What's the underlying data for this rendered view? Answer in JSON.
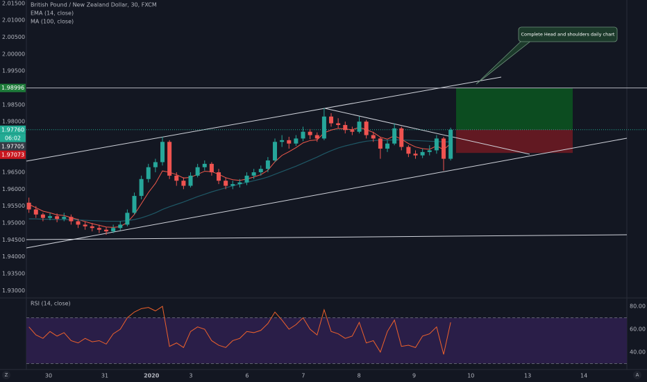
{
  "chart_data": [
    {
      "type": "candlestick",
      "title": "British Pound / New Zealand Dollar, 30, FXCM",
      "x": [
        -0.35,
        -0.225,
        -0.1,
        0.025,
        0.15,
        0.275,
        0.4,
        0.525,
        0.65,
        0.775,
        0.9,
        1.025,
        1.15,
        1.275,
        1.4,
        1.525,
        1.65,
        1.775,
        1.9,
        2.025,
        2.15,
        2.275,
        2.4,
        2.525,
        2.65,
        2.775,
        2.9,
        3.025,
        3.15,
        3.275,
        3.4,
        3.525,
        3.65,
        3.775,
        3.9,
        4.025,
        4.15,
        4.275,
        4.4,
        4.525,
        4.65,
        4.775,
        4.9,
        5.025,
        5.15,
        5.275,
        5.4,
        5.525,
        5.65,
        5.775,
        5.9,
        6.025,
        6.15,
        6.275,
        6.4,
        6.525,
        6.65,
        6.775,
        6.9,
        7.025,
        7.15
      ],
      "ohlc": [
        [
          1.956,
          1.9575,
          1.953,
          1.954
        ],
        [
          1.954,
          1.955,
          1.9515,
          1.9525
        ],
        [
          1.9525,
          1.953,
          1.9505,
          1.9515
        ],
        [
          1.9515,
          1.953,
          1.9508,
          1.952
        ],
        [
          1.952,
          1.9528,
          1.9502,
          1.9512
        ],
        [
          1.9512,
          1.953,
          1.9505,
          1.9518
        ],
        [
          1.9518,
          1.9525,
          1.9495,
          1.9505
        ],
        [
          1.9505,
          1.9512,
          1.9485,
          1.9495
        ],
        [
          1.9495,
          1.9505,
          1.948,
          1.949
        ],
        [
          1.949,
          1.95,
          1.9475,
          1.9485
        ],
        [
          1.9485,
          1.9495,
          1.947,
          1.948
        ],
        [
          1.948,
          1.9488,
          1.9465,
          1.9475
        ],
        [
          1.9475,
          1.9495,
          1.947,
          1.9485
        ],
        [
          1.9485,
          1.9505,
          1.9478,
          1.9495
        ],
        [
          1.9495,
          1.954,
          1.949,
          1.953
        ],
        [
          1.953,
          1.959,
          1.9525,
          1.958
        ],
        [
          1.958,
          1.964,
          1.957,
          1.963
        ],
        [
          1.963,
          1.9675,
          1.962,
          1.9665
        ],
        [
          1.9665,
          1.969,
          1.965,
          1.968
        ],
        [
          1.968,
          1.9755,
          1.967,
          1.974
        ],
        [
          1.974,
          1.9745,
          1.963,
          1.964
        ],
        [
          1.964,
          1.965,
          1.961,
          1.9625
        ],
        [
          1.9625,
          1.9635,
          1.96,
          1.961
        ],
        [
          1.961,
          1.965,
          1.9605,
          1.964
        ],
        [
          1.964,
          1.9675,
          1.9635,
          1.9665
        ],
        [
          1.9665,
          1.9685,
          1.9655,
          1.9675
        ],
        [
          1.9675,
          1.968,
          1.964,
          1.965
        ],
        [
          1.965,
          1.966,
          1.9615,
          1.9625
        ],
        [
          1.9625,
          1.9635,
          1.96,
          1.961
        ],
        [
          1.961,
          1.9625,
          1.96,
          1.9615
        ],
        [
          1.9615,
          1.963,
          1.9605,
          1.962
        ],
        [
          1.962,
          1.965,
          1.9612,
          1.964
        ],
        [
          1.964,
          1.966,
          1.963,
          1.965
        ],
        [
          1.965,
          1.967,
          1.964,
          1.966
        ],
        [
          1.966,
          1.9695,
          1.965,
          1.9685
        ],
        [
          1.9685,
          1.975,
          1.968,
          1.974
        ],
        [
          1.974,
          1.976,
          1.9725,
          1.9745
        ],
        [
          1.9745,
          1.9755,
          1.972,
          1.9735
        ],
        [
          1.9735,
          1.976,
          1.9728,
          1.975
        ],
        [
          1.975,
          1.9785,
          1.9742,
          1.977
        ],
        [
          1.977,
          1.9778,
          1.9748,
          1.976
        ],
        [
          1.976,
          1.9768,
          1.974,
          1.975
        ],
        [
          1.975,
          1.984,
          1.9745,
          1.9815
        ],
        [
          1.9815,
          1.9825,
          1.9785,
          1.9795
        ],
        [
          1.9795,
          1.981,
          1.978,
          1.979
        ],
        [
          1.979,
          1.98,
          1.9765,
          1.9775
        ],
        [
          1.9775,
          1.9785,
          1.976,
          1.977
        ],
        [
          1.977,
          1.9815,
          1.9765,
          1.98
        ],
        [
          1.98,
          1.9805,
          1.975,
          1.976
        ],
        [
          1.976,
          1.977,
          1.974,
          1.975
        ],
        [
          1.975,
          1.9755,
          1.969,
          1.972
        ],
        [
          1.972,
          1.9745,
          1.971,
          1.9735
        ],
        [
          1.9735,
          1.9795,
          1.973,
          1.978
        ],
        [
          1.978,
          1.9785,
          1.9715,
          1.9725
        ],
        [
          1.9725,
          1.973,
          1.9695,
          1.9705
        ],
        [
          1.9705,
          1.9715,
          1.969,
          1.97
        ],
        [
          1.97,
          1.972,
          1.9692,
          1.971
        ],
        [
          1.971,
          1.973,
          1.97,
          1.9715
        ],
        [
          1.9715,
          1.976,
          1.9705,
          1.975
        ],
        [
          1.975,
          1.9755,
          1.9655,
          1.969
        ],
        [
          1.969,
          1.9782,
          1.9685,
          1.9776
        ]
      ],
      "up_color": "#26a69a",
      "down_color": "#ef5350",
      "series": [
        {
          "name": "EMA (14, close)",
          "color": "#f2594b",
          "values": [
            1.9555,
            1.9545,
            1.9535,
            1.953,
            1.9524,
            1.9522,
            1.9516,
            1.951,
            1.9504,
            1.9498,
            1.9493,
            1.9488,
            1.9487,
            1.9489,
            1.9502,
            1.9525,
            1.9557,
            1.959,
            1.9617,
            1.9654,
            1.965,
            1.9643,
            1.9633,
            1.9635,
            1.9644,
            1.9653,
            1.9652,
            1.9644,
            1.9634,
            1.9628,
            1.9626,
            1.963,
            1.9636,
            1.9643,
            1.9656,
            1.9681,
            1.97,
            1.9711,
            1.9723,
            1.9737,
            1.9744,
            1.9746,
            1.9767,
            1.9775,
            1.978,
            1.9778,
            1.9776,
            1.9783,
            1.9776,
            1.9768,
            1.9754,
            1.9748,
            1.9758,
            1.9748,
            1.9735,
            1.9725,
            1.972,
            1.9718,
            1.9728,
            1.9717,
            1.9735
          ]
        },
        {
          "name": "MA (100, close)",
          "color": "#1f5866",
          "values": [
            1.9512,
            1.9512,
            1.9511,
            1.9511,
            1.951,
            1.951,
            1.951,
            1.9509,
            1.9508,
            1.9507,
            1.9506,
            1.9505,
            1.9505,
            1.9505,
            1.9507,
            1.951,
            1.9515,
            1.9522,
            1.953,
            1.954,
            1.9548,
            1.9555,
            1.9562,
            1.957,
            1.9578,
            1.9585,
            1.9592,
            1.9598,
            1.9604,
            1.961,
            1.9615,
            1.962,
            1.9625,
            1.963,
            1.9636,
            1.9644,
            1.9652,
            1.966,
            1.9668,
            1.9677,
            1.9686,
            1.9695,
            1.9705,
            1.9714,
            1.9722,
            1.9728,
            1.9733,
            1.9738,
            1.9742,
            1.9744,
            1.9745,
            1.9745,
            1.9746,
            1.9746,
            1.9745,
            1.9744,
            1.9743,
            1.9742,
            1.9741,
            1.974,
            1.974
          ]
        }
      ],
      "xlim": [
        -0.395,
        10.284
      ],
      "xticks": [
        {
          "value": 0,
          "label": "30"
        },
        {
          "value": 1,
          "label": "31"
        },
        {
          "value": 1.83,
          "label": "2020"
        },
        {
          "value": 2.53,
          "label": "3"
        },
        {
          "value": 3.53,
          "label": "6"
        },
        {
          "value": 4.53,
          "label": "7"
        },
        {
          "value": 5.52,
          "label": "8"
        },
        {
          "value": 6.5,
          "label": "9"
        },
        {
          "value": 7.51,
          "label": "10"
        },
        {
          "value": 8.52,
          "label": "13"
        },
        {
          "value": 9.52,
          "label": "14"
        }
      ],
      "ylim": [
        1.928,
        2.016
      ],
      "yticks": [
        {
          "value": 2.015,
          "label": "2.01500"
        },
        {
          "value": 2.01,
          "label": "2.01000"
        },
        {
          "value": 2.005,
          "label": "2.00500"
        },
        {
          "value": 2.0,
          "label": "2.00000"
        },
        {
          "value": 1.995,
          "label": "1.99500"
        },
        {
          "value": 1.99,
          "label": "1.99000"
        },
        {
          "value": 1.985,
          "label": "1.98500"
        },
        {
          "value": 1.98,
          "label": "1.98000"
        },
        {
          "value": 1.975,
          "label": "1.97500"
        },
        {
          "value": 1.97,
          "label": "1.97000"
        },
        {
          "value": 1.965,
          "label": "1.96500"
        },
        {
          "value": 1.96,
          "label": "1.96000"
        },
        {
          "value": 1.955,
          "label": "1.95500"
        },
        {
          "value": 1.95,
          "label": "1.95000"
        },
        {
          "value": 1.945,
          "label": "1.94500"
        },
        {
          "value": 1.94,
          "label": "1.94000"
        },
        {
          "value": 1.935,
          "label": "1.93500"
        },
        {
          "value": 1.93,
          "label": "1.93000"
        }
      ],
      "price_labels": [
        {
          "value": 1.98996,
          "color": "#1e7b3a",
          "line": "solid"
        },
        {
          "value": 1.9776,
          "label": "1.97760",
          "color": "#22ab94",
          "line": "dotted",
          "countdown": "06:02"
        },
        {
          "value": 1.97705,
          "color": "#363a45"
        },
        {
          "value": 1.97073,
          "color": "#c8161e"
        }
      ],
      "annotation": "Complete Head and shoulders daily chart"
    },
    {
      "type": "line",
      "title": "RSI (14, close)",
      "x": [
        -0.35,
        -0.225,
        -0.1,
        0.025,
        0.15,
        0.275,
        0.4,
        0.525,
        0.65,
        0.775,
        0.9,
        1.025,
        1.15,
        1.275,
        1.4,
        1.525,
        1.65,
        1.775,
        1.9,
        2.025,
        2.15,
        2.275,
        2.4,
        2.525,
        2.65,
        2.775,
        2.9,
        3.025,
        3.15,
        3.275,
        3.4,
        3.525,
        3.65,
        3.775,
        3.9,
        4.025,
        4.15,
        4.275,
        4.4,
        4.525,
        4.65,
        4.775,
        4.9,
        5.025,
        5.15,
        5.275,
        5.4,
        5.525,
        5.65,
        5.775,
        5.9,
        6.025,
        6.15,
        6.275,
        6.4,
        6.525,
        6.65,
        6.775,
        6.9,
        7.025,
        7.15
      ],
      "series": [
        {
          "color": "#f0622b",
          "values": [
            62,
            55,
            52,
            58,
            54,
            57,
            50,
            48,
            52,
            49,
            50,
            47,
            56,
            60,
            70,
            75,
            78,
            79,
            76,
            80,
            45,
            48,
            44,
            58,
            62,
            60,
            50,
            46,
            44,
            50,
            52,
            58,
            57,
            59,
            65,
            75,
            68,
            60,
            64,
            70,
            60,
            55,
            77,
            58,
            56,
            52,
            54,
            66,
            48,
            50,
            40,
            58,
            68,
            45,
            46,
            44,
            54,
            56,
            62,
            38,
            66
          ]
        }
      ],
      "xlim": [
        -0.395,
        10.284
      ],
      "ylim": [
        26,
        86.7
      ],
      "yticks": [
        {
          "value": 80,
          "label": "80.00"
        },
        {
          "value": 60,
          "label": "60.00"
        },
        {
          "value": 40,
          "label": "40.00"
        }
      ],
      "bands": [
        30,
        70
      ],
      "band_color": "#2a1e48"
    }
  ],
  "ui": {
    "left_button": "Z",
    "right_button": "A"
  }
}
